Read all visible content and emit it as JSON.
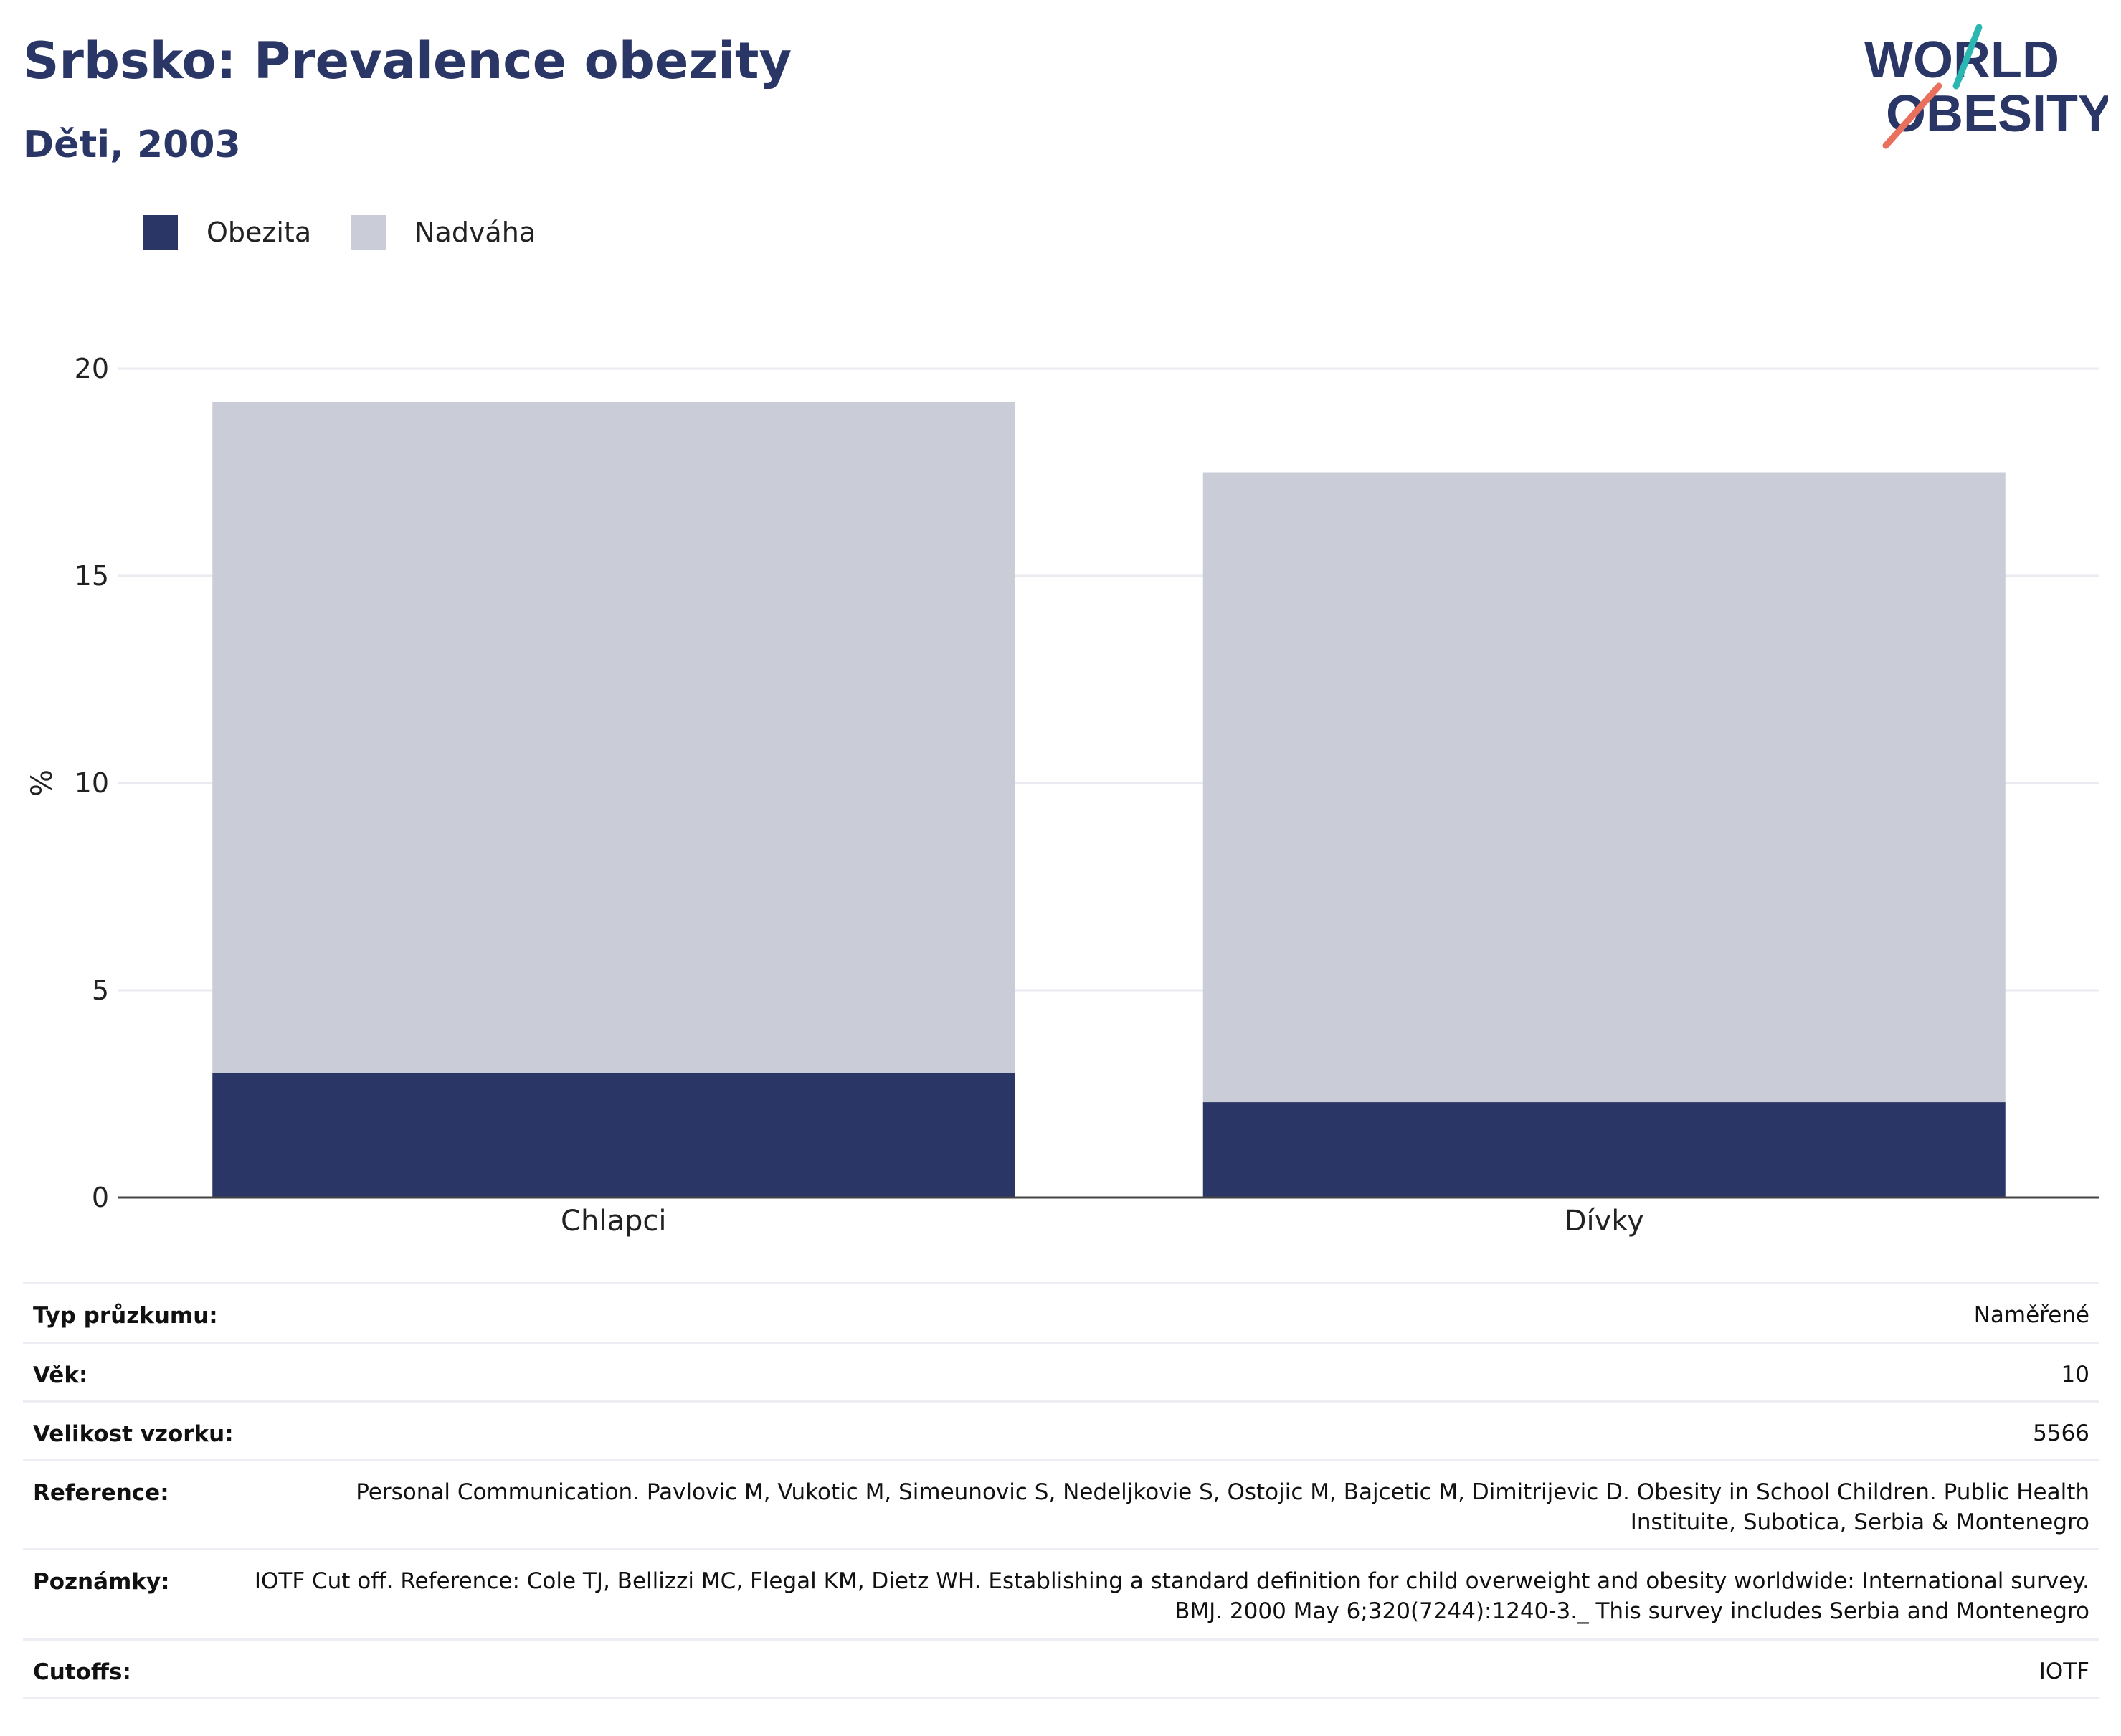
{
  "header": {
    "title": "Srbsko: Prevalence obezity",
    "subtitle": "Děti, 2003"
  },
  "logo": {
    "line1": "WORLD",
    "line2": "OBESITY",
    "colors": {
      "text": "#2a3666",
      "teal": "#2ab7b2",
      "coral": "#e8705d"
    }
  },
  "legend": [
    {
      "label": "Obezita",
      "color": "#2a3666"
    },
    {
      "label": "Nadváha",
      "color": "#cacdd8"
    }
  ],
  "chart_data": {
    "type": "bar",
    "stacked": true,
    "categories": [
      "Chlapci",
      "Dívky"
    ],
    "series": [
      {
        "name": "Obezita",
        "values": [
          3.0,
          2.3
        ],
        "color": "#2a3666"
      },
      {
        "name": "Nadváha",
        "values": [
          16.2,
          15.2
        ],
        "color": "#cacdd8"
      }
    ],
    "ylabel": "%",
    "ylim": [
      0,
      20
    ],
    "yticks": [
      0,
      5,
      10,
      15,
      20
    ],
    "grid": true,
    "legend_position": "top-left"
  },
  "meta": [
    {
      "key": "Typ průzkumu:",
      "value": "Naměřené"
    },
    {
      "key": "Věk:",
      "value": "10"
    },
    {
      "key": "Velikost vzorku:",
      "value": "5566"
    },
    {
      "key": "Reference:",
      "value": "Personal Communication. Pavlovic M, Vukotic M, Simeunovic S, Nedeljkovie S, Ostojic M, Bajcetic M, Dimitrijevic D. Obesity in School Children. Public Health Instituite, Subotica, Serbia & Montenegro"
    },
    {
      "key": "Poznámky:",
      "value": "IOTF Cut off. Reference: Cole TJ, Bellizzi MC, Flegal KM, Dietz WH. Establishing a standard definition for child overweight and obesity worldwide: International survey. BMJ. 2000 May 6;320(7244):1240-3._ This survey includes Serbia and Montenegro"
    },
    {
      "key": "Cutoffs:",
      "value": "IOTF"
    }
  ]
}
